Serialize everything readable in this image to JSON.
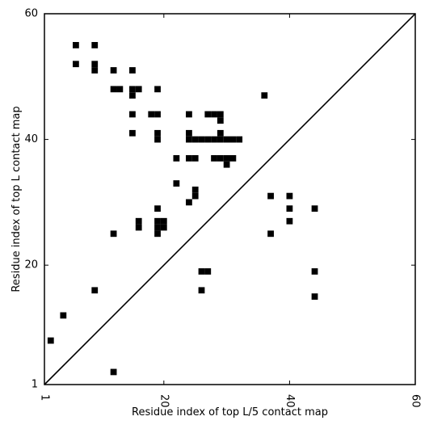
{
  "chart_data": {
    "type": "heatmap",
    "title": "",
    "xlabel": "Residue index of top L/5 contact map",
    "ylabel": "Residue index of top L contact map",
    "xlim": [
      1,
      60
    ],
    "ylim": [
      1,
      60
    ],
    "x_ticks": [
      1,
      20,
      40,
      60
    ],
    "y_ticks": [
      1,
      20,
      40,
      60
    ],
    "x_tick_labels": [
      "1",
      "20",
      "40",
      "60"
    ],
    "y_tick_labels": [
      "1",
      "20",
      "40",
      "60"
    ],
    "diagonal_line": true,
    "grid": false,
    "cell_color": "#000000",
    "cells": [
      [
        6,
        55
      ],
      [
        9,
        55
      ],
      [
        6,
        52
      ],
      [
        9,
        52
      ],
      [
        9,
        51
      ],
      [
        12,
        51
      ],
      [
        15,
        51
      ],
      [
        12,
        48
      ],
      [
        13,
        48
      ],
      [
        15,
        48
      ],
      [
        16,
        48
      ],
      [
        19,
        48
      ],
      [
        15,
        47
      ],
      [
        36,
        47
      ],
      [
        15,
        44
      ],
      [
        18,
        44
      ],
      [
        19,
        44
      ],
      [
        24,
        44
      ],
      [
        27,
        44
      ],
      [
        28,
        44
      ],
      [
        29,
        44
      ],
      [
        29,
        43
      ],
      [
        15,
        41
      ],
      [
        19,
        41
      ],
      [
        24,
        41
      ],
      [
        29,
        41
      ],
      [
        19,
        40
      ],
      [
        24,
        40
      ],
      [
        25,
        40
      ],
      [
        26,
        40
      ],
      [
        27,
        40
      ],
      [
        28,
        40
      ],
      [
        29,
        40
      ],
      [
        30,
        40
      ],
      [
        31,
        40
      ],
      [
        32,
        40
      ],
      [
        22,
        37
      ],
      [
        24,
        37
      ],
      [
        25,
        37
      ],
      [
        28,
        37
      ],
      [
        29,
        37
      ],
      [
        30,
        37
      ],
      [
        31,
        37
      ],
      [
        30,
        36
      ],
      [
        22,
        33
      ],
      [
        25,
        32
      ],
      [
        25,
        31
      ],
      [
        37,
        31
      ],
      [
        40,
        31
      ],
      [
        24,
        30
      ],
      [
        19,
        29
      ],
      [
        40,
        29
      ],
      [
        44,
        29
      ],
      [
        16,
        27
      ],
      [
        19,
        27
      ],
      [
        20,
        27
      ],
      [
        16,
        26
      ],
      [
        19,
        26
      ],
      [
        20,
        26
      ],
      [
        40,
        27
      ],
      [
        12,
        25
      ],
      [
        19,
        25
      ],
      [
        37,
        25
      ],
      [
        26,
        19
      ],
      [
        27,
        19
      ],
      [
        44,
        19
      ],
      [
        9,
        16
      ],
      [
        26,
        16
      ],
      [
        44,
        15
      ],
      [
        4,
        12
      ],
      [
        2,
        8
      ],
      [
        12,
        3
      ]
    ]
  }
}
